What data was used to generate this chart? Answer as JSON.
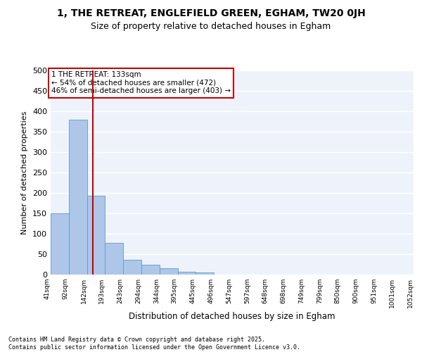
{
  "title1": "1, THE RETREAT, ENGLEFIELD GREEN, EGHAM, TW20 0JH",
  "title2": "Size of property relative to detached houses in Egham",
  "xlabel": "Distribution of detached houses by size in Egham",
  "ylabel": "Number of detached properties",
  "bar_values": [
    150,
    380,
    193,
    77,
    37,
    25,
    15,
    7,
    6,
    0,
    0,
    0,
    0,
    0,
    0,
    0,
    0,
    0,
    0,
    0
  ],
  "categories": [
    "41sqm",
    "92sqm",
    "142sqm",
    "193sqm",
    "243sqm",
    "294sqm",
    "344sqm",
    "395sqm",
    "445sqm",
    "496sqm",
    "547sqm",
    "597sqm",
    "648sqm",
    "698sqm",
    "749sqm",
    "799sqm",
    "850sqm",
    "900sqm",
    "951sqm",
    "1001sqm",
    "1052sqm"
  ],
  "bar_color": "#AEC6E8",
  "bar_edge_color": "#5A9BD5",
  "background_color": "#EEF3FB",
  "grid_color": "#FFFFFF",
  "annotation_box_color": "#CC0000",
  "vline_color": "#CC0000",
  "annotation_text": "1 THE RETREAT: 133sqm\n← 54% of detached houses are smaller (472)\n46% of semi-detached houses are larger (403) →",
  "annotation_fontsize": 7.5,
  "footer_text": "Contains HM Land Registry data © Crown copyright and database right 2025.\nContains public sector information licensed under the Open Government Licence v3.0.",
  "ylim": [
    0,
    500
  ],
  "yticks": [
    0,
    50,
    100,
    150,
    200,
    250,
    300,
    350,
    400,
    450,
    500
  ]
}
